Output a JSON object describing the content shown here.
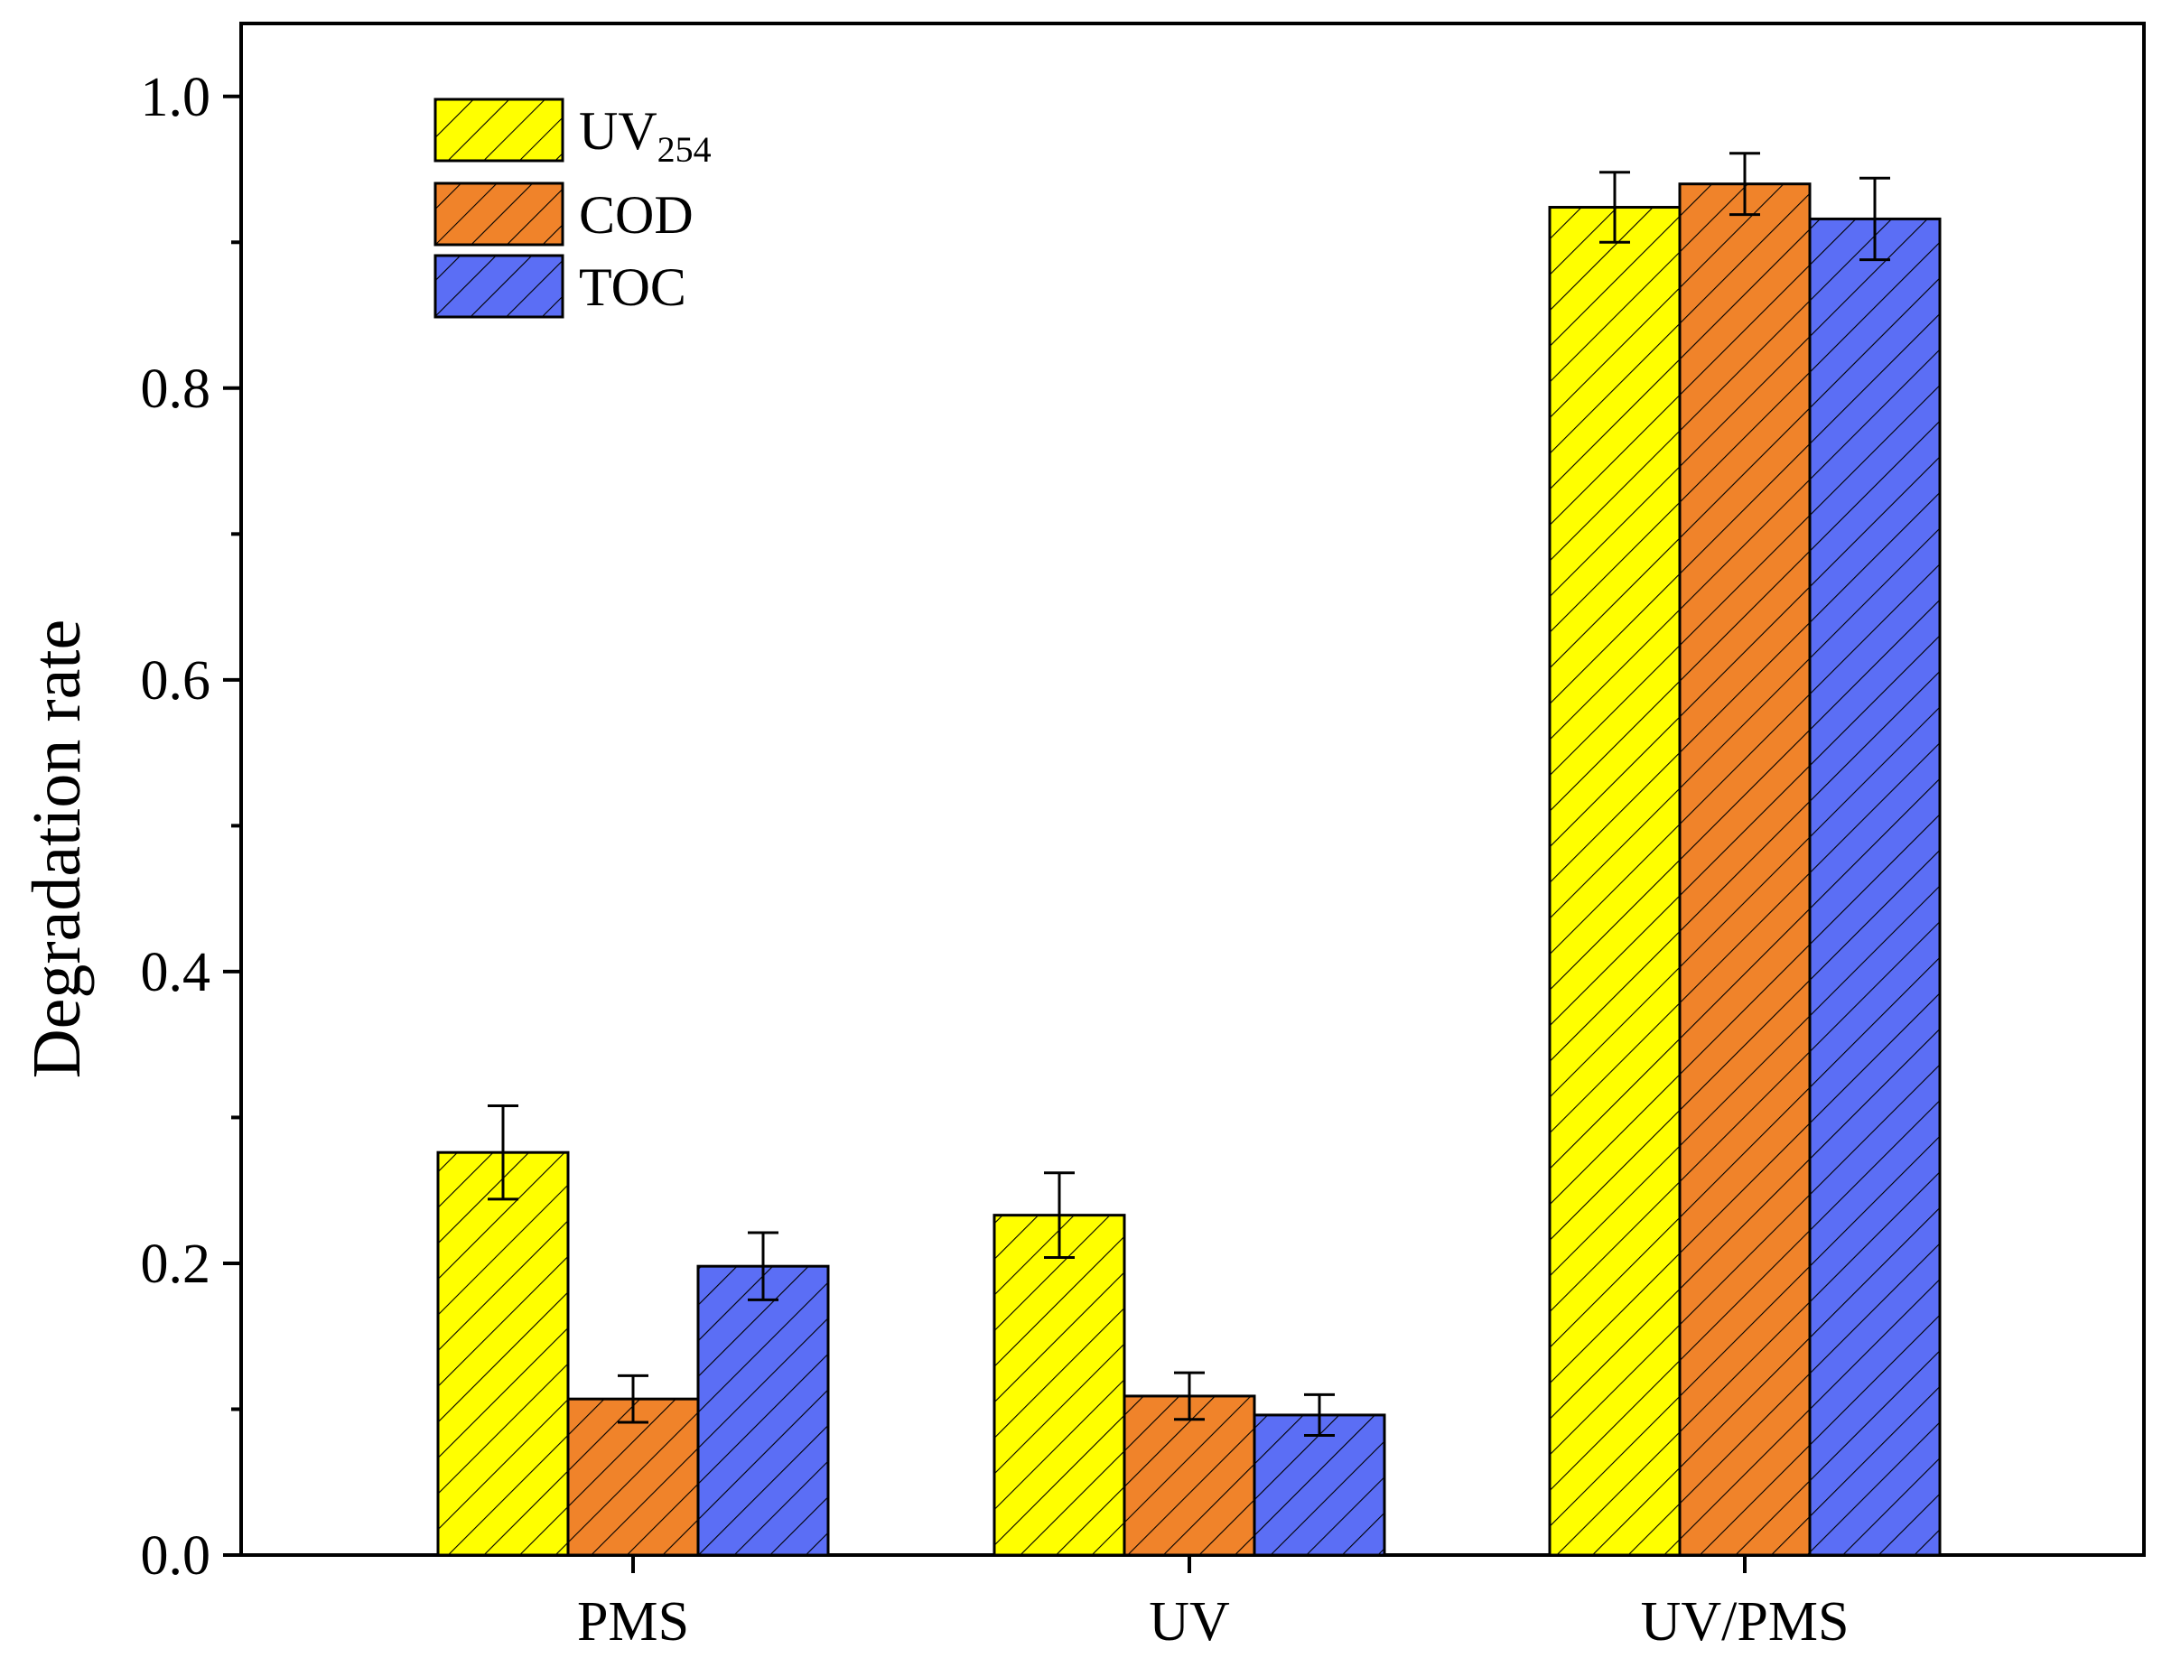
{
  "chart_data": {
    "type": "bar",
    "categories": [
      "PMS",
      "UV",
      "UV/PMS"
    ],
    "series": [
      {
        "name": "UV254",
        "name_main": "UV",
        "name_sub": "254",
        "color": "#ffff00",
        "values": [
          0.276,
          0.233,
          0.924
        ],
        "errors": [
          0.032,
          0.029,
          0.024
        ]
      },
      {
        "name": "COD",
        "color": "#f0832a",
        "values": [
          0.107,
          0.109,
          0.94
        ],
        "errors": [
          0.016,
          0.016,
          0.021
        ]
      },
      {
        "name": "TOC",
        "color": "#5b6ef5",
        "values": [
          0.198,
          0.096,
          0.916
        ],
        "errors": [
          0.023,
          0.014,
          0.028
        ]
      }
    ],
    "title": "",
    "xlabel": "",
    "ylabel": "Degradation rate",
    "ylim": [
      0.0,
      1.05
    ],
    "yticks": [
      0.0,
      0.2,
      0.4,
      0.6,
      0.8,
      1.0
    ],
    "ytick_labels": [
      "0.0",
      "0.2",
      "0.4",
      "0.6",
      "0.8",
      "1.0"
    ],
    "minor_yticks": [
      0.1,
      0.3,
      0.5,
      0.7,
      0.9
    ],
    "grid": false,
    "legend_position": "top-left",
    "bar_pattern": "diagonal-hatch"
  }
}
